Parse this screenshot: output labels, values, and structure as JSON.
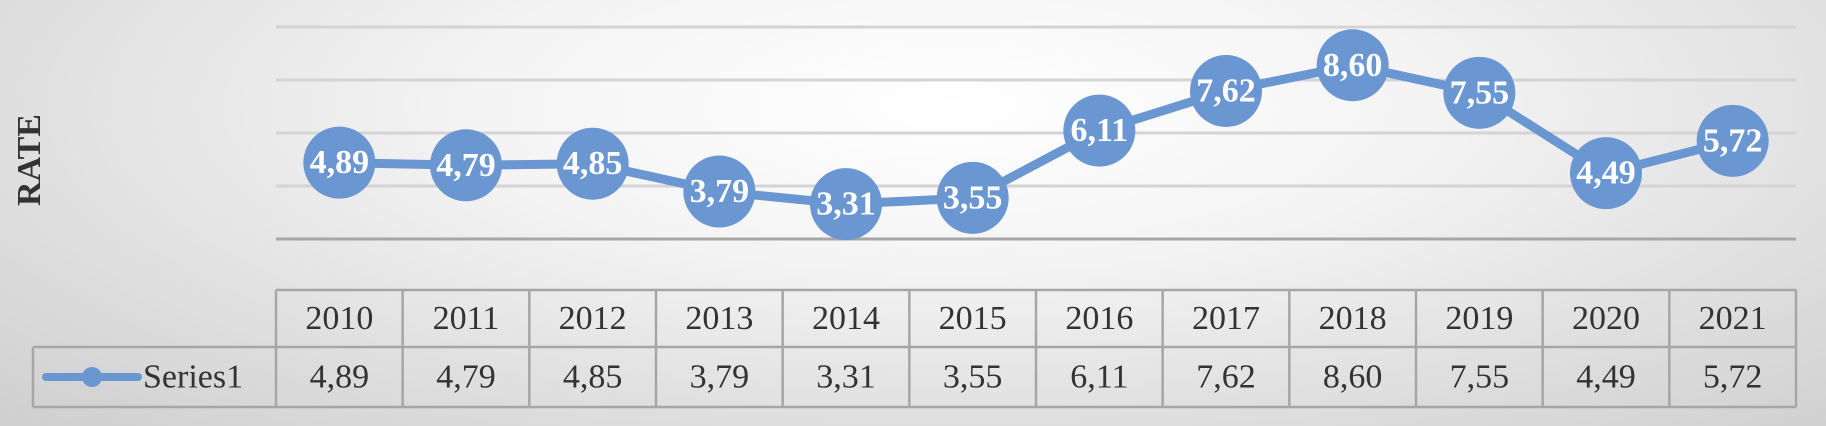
{
  "chart_data": {
    "type": "line",
    "ylabel": "RATE",
    "categories": [
      "2010",
      "2011",
      "2012",
      "2013",
      "2014",
      "2015",
      "2016",
      "2017",
      "2018",
      "2019",
      "2020",
      "2021"
    ],
    "series": [
      {
        "name": "Series1",
        "values": [
          4.89,
          4.79,
          4.85,
          3.79,
          3.31,
          3.55,
          6.11,
          7.62,
          8.6,
          7.55,
          4.49,
          5.72
        ],
        "labels": [
          "4,89",
          "4,79",
          "4,85",
          "3,79",
          "3,31",
          "3,55",
          "6,11",
          "7,62",
          "8,60",
          "7,55",
          "4,49",
          "5,72"
        ],
        "color": "#6a96d1"
      }
    ],
    "data_table": true,
    "data_labels": true,
    "grid": true,
    "marker": "circle"
  }
}
